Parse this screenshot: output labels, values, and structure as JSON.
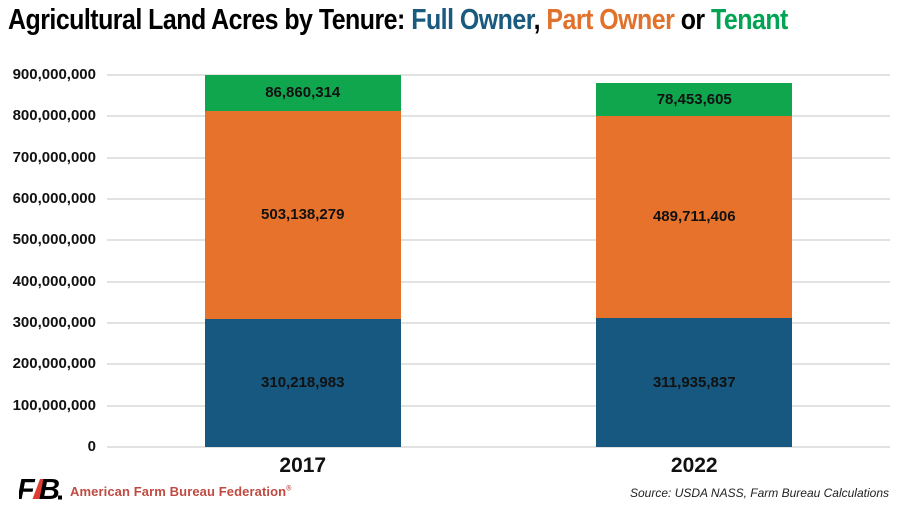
{
  "title": {
    "full_text": "Agricultural Land Acres by Tenure: Full Owner, Part Owner or Tenant",
    "parts": [
      {
        "text": "Agricultural Land Acres by Tenure: ",
        "color": "#000000"
      },
      {
        "text": "Full Owner",
        "color": "#1a5a7e"
      },
      {
        "text": ", ",
        "color": "#000000"
      },
      {
        "text": "Part Owner",
        "color": "#e0722c"
      },
      {
        "text": " or ",
        "color": "#000000"
      },
      {
        "text": "Tenant",
        "color": "#00a453"
      }
    ]
  },
  "chart_data": {
    "type": "bar",
    "stacked": true,
    "title": "Agricultural Land Acres by Tenure: Full Owner, Part Owner or Tenant",
    "categories": [
      "2017",
      "2022"
    ],
    "series": [
      {
        "name": "Full Owner",
        "color": "#16587f",
        "values": [
          310218983,
          311935837
        ],
        "labels": [
          "310,218,983",
          "311,935,837"
        ]
      },
      {
        "name": "Part Owner",
        "color": "#e7722b",
        "values": [
          503138279,
          489711406
        ],
        "labels": [
          "503,138,279",
          "489,711,406"
        ]
      },
      {
        "name": "Tenant",
        "color": "#10a64e",
        "values": [
          86860314,
          78453605
        ],
        "labels": [
          "86,860,314",
          "78,453,605"
        ]
      }
    ],
    "xlabel": "",
    "ylabel": "",
    "ylim": [
      0,
      900000000
    ],
    "y_ticks": [
      {
        "value": 0,
        "label": "0"
      },
      {
        "value": 100000000,
        "label": "100,000,000"
      },
      {
        "value": 200000000,
        "label": "200,000,000"
      },
      {
        "value": 300000000,
        "label": "300,000,000"
      },
      {
        "value": 400000000,
        "label": "400,000,000"
      },
      {
        "value": 500000000,
        "label": "500,000,000"
      },
      {
        "value": 600000000,
        "label": "600,000,000"
      },
      {
        "value": 700000000,
        "label": "700,000,000"
      },
      {
        "value": 800000000,
        "label": "800,000,000"
      },
      {
        "value": 900000000,
        "label": "900,000,000"
      }
    ],
    "grid": true,
    "legend_position": "in-title",
    "gridline_color": "#e2e2e2"
  },
  "footer": {
    "logo_text": "FB.",
    "brand": "American Farm Bureau Federation",
    "brand_mark": "®",
    "brand_color": "#bf4a41",
    "logo_red": "#e03c31",
    "source": "Source: USDA NASS, Farm Bureau Calculations"
  }
}
